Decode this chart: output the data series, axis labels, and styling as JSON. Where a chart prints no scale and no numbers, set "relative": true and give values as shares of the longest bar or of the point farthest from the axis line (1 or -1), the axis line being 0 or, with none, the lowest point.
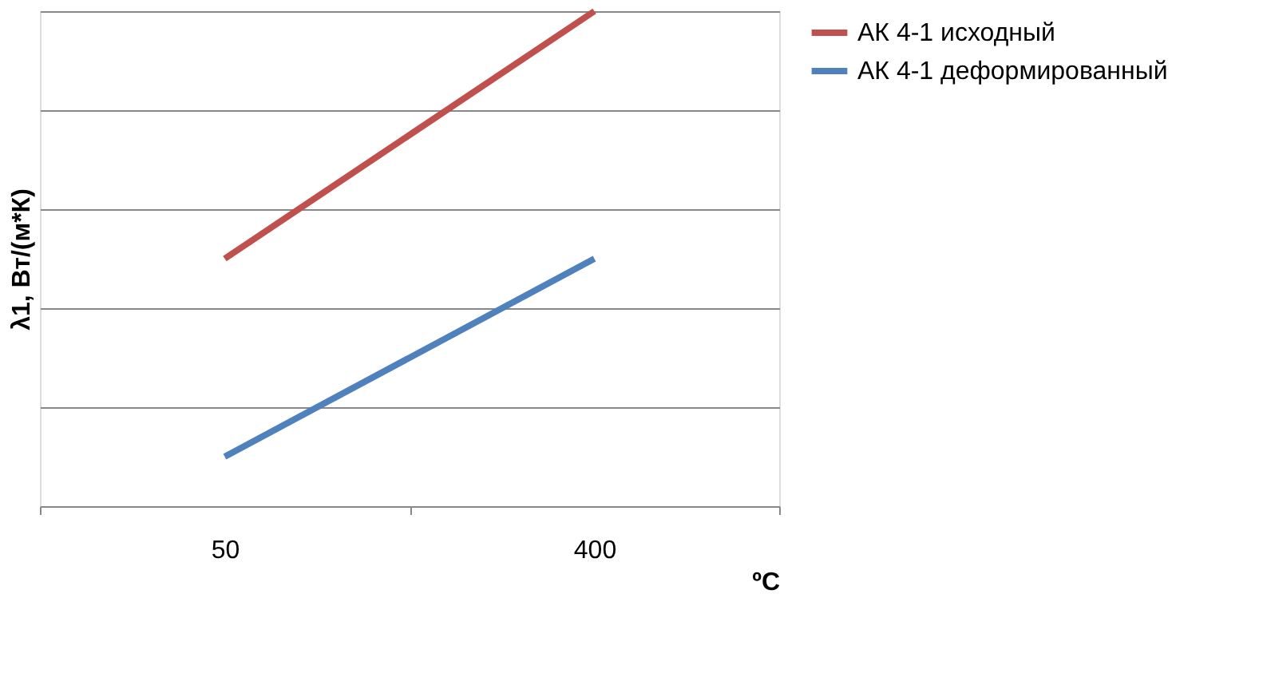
{
  "chart_data": {
    "type": "line",
    "relative": true,
    "ylabel": "λ1, Вт/(м*К)",
    "xlabel": "ºC",
    "categories": [
      "50",
      "400"
    ],
    "grid": "y",
    "legend": "right",
    "series": [
      {
        "name": "АК 4-1 исходный",
        "color": "#c0504d",
        "values": [
          0.5,
          1.0
        ]
      },
      {
        "name": "АК 4-1 деформированный",
        "color": "#4f81bd",
        "values": [
          0.1,
          0.5
        ]
      }
    ]
  }
}
